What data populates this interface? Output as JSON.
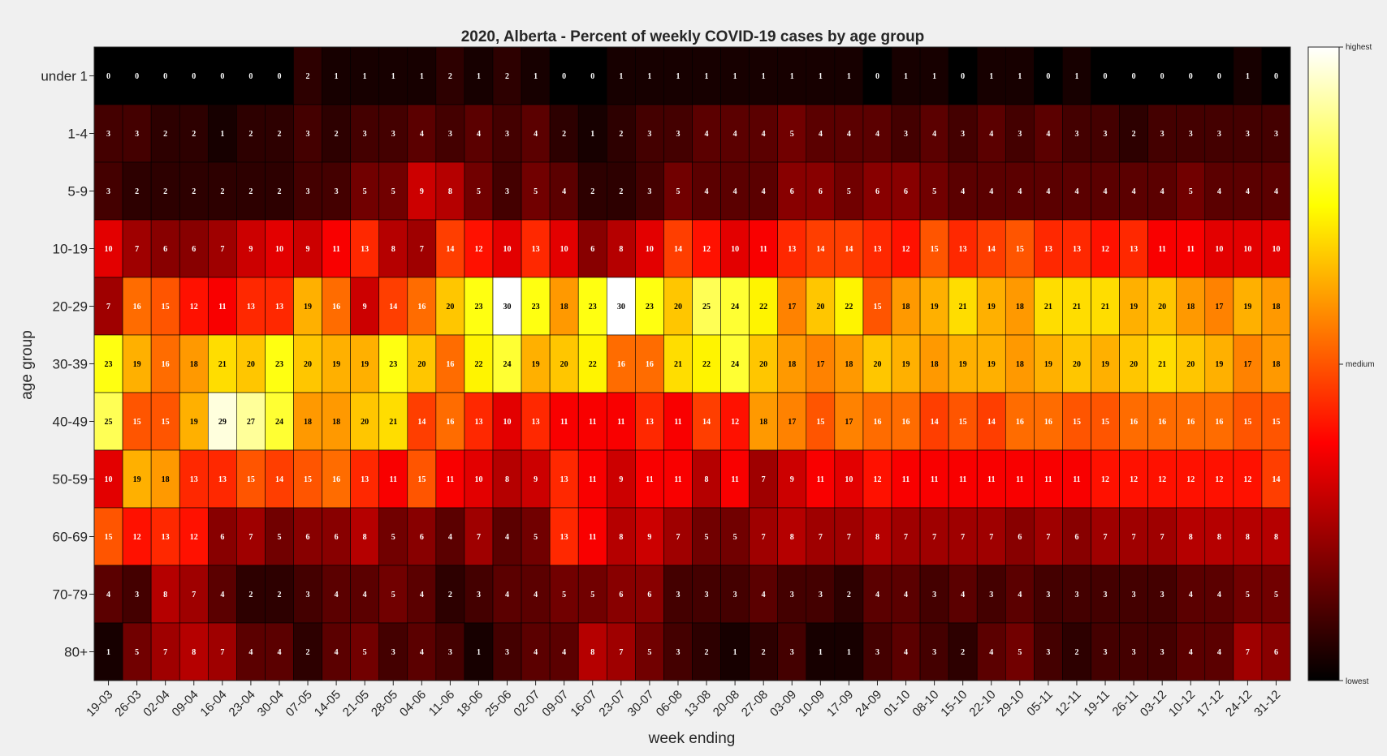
{
  "chart_data": {
    "type": "heatmap",
    "title": "2020, Alberta - Percent of weekly COVID-19 cases by age group",
    "xlabel": "week ending",
    "ylabel": "age group",
    "rows": [
      "under 1",
      "1-4",
      "5-9",
      "10-19",
      "20-29",
      "30-39",
      "40-49",
      "50-59",
      "60-69",
      "70-79",
      "80+"
    ],
    "columns": [
      "19-03",
      "26-03",
      "02-04",
      "09-04",
      "16-04",
      "23-04",
      "30-04",
      "07-05",
      "14-05",
      "21-05",
      "28-05",
      "04-06",
      "11-06",
      "18-06",
      "25-06",
      "02-07",
      "09-07",
      "16-07",
      "23-07",
      "30-07",
      "06-08",
      "13-08",
      "20-08",
      "27-08",
      "03-09",
      "10-09",
      "17-09",
      "24-09",
      "01-10",
      "08-10",
      "15-10",
      "22-10",
      "29-10",
      "05-11",
      "12-11",
      "19-11",
      "26-11",
      "03-12",
      "10-12",
      "17-12",
      "24-12",
      "31-12"
    ],
    "values": [
      [
        0,
        0,
        0,
        0,
        0,
        0,
        0,
        2,
        1,
        1,
        1,
        1,
        2,
        1,
        2,
        1,
        0,
        0,
        1,
        1,
        1,
        1,
        1,
        1,
        1,
        1,
        1,
        0,
        1,
        1,
        0,
        1,
        1,
        0,
        1,
        0,
        0,
        0,
        0,
        0,
        1,
        0
      ],
      [
        3,
        3,
        2,
        2,
        1,
        2,
        2,
        3,
        2,
        3,
        3,
        4,
        3,
        4,
        3,
        4,
        2,
        1,
        2,
        3,
        3,
        4,
        4,
        4,
        5,
        4,
        4,
        4,
        3,
        4,
        3,
        4,
        3,
        4,
        3,
        3,
        2,
        3,
        3,
        3,
        3,
        3
      ],
      [
        3,
        2,
        2,
        2,
        2,
        2,
        2,
        3,
        3,
        5,
        5,
        9,
        8,
        5,
        3,
        5,
        4,
        2,
        2,
        3,
        5,
        4,
        4,
        4,
        6,
        6,
        5,
        6,
        6,
        5,
        4,
        4,
        4,
        4,
        4,
        4,
        4,
        4,
        5,
        4,
        4,
        4
      ],
      [
        10,
        7,
        6,
        6,
        7,
        9,
        10,
        9,
        11,
        13,
        8,
        7,
        14,
        12,
        10,
        13,
        10,
        6,
        8,
        10,
        14,
        12,
        10,
        11,
        13,
        14,
        14,
        13,
        12,
        15,
        13,
        14,
        15,
        13,
        13,
        12,
        13,
        11,
        11,
        10,
        10,
        10
      ],
      [
        7,
        16,
        15,
        12,
        11,
        13,
        13,
        19,
        16,
        9,
        14,
        16,
        20,
        23,
        30,
        23,
        18,
        23,
        30,
        23,
        20,
        25,
        24,
        22,
        17,
        20,
        22,
        15,
        18,
        19,
        21,
        19,
        18,
        21,
        21,
        21,
        19,
        20,
        18,
        17,
        19,
        18
      ],
      [
        23,
        19,
        16,
        18,
        21,
        20,
        23,
        20,
        19,
        19,
        23,
        20,
        16,
        22,
        24,
        19,
        20,
        22,
        16,
        16,
        21,
        22,
        24,
        20,
        18,
        17,
        18,
        20,
        19,
        18,
        19,
        19,
        18,
        19,
        20,
        19,
        20,
        21,
        20,
        19,
        17,
        18
      ],
      [
        25,
        15,
        15,
        19,
        29,
        27,
        24,
        18,
        18,
        20,
        21,
        14,
        16,
        13,
        10,
        13,
        11,
        11,
        11,
        13,
        11,
        14,
        12,
        18,
        17,
        15,
        17,
        16,
        16,
        14,
        15,
        14,
        16,
        16,
        15,
        15,
        16,
        16,
        16,
        16,
        15,
        15
      ],
      [
        10,
        19,
        18,
        13,
        13,
        15,
        14,
        15,
        16,
        13,
        11,
        15,
        11,
        10,
        8,
        9,
        13,
        11,
        9,
        11,
        11,
        8,
        11,
        7,
        9,
        11,
        10,
        12,
        11,
        11,
        11,
        11,
        11,
        11,
        11,
        12,
        12,
        12,
        12,
        12,
        12,
        14
      ],
      [
        15,
        12,
        13,
        12,
        6,
        7,
        5,
        6,
        6,
        8,
        5,
        6,
        4,
        7,
        4,
        5,
        13,
        11,
        8,
        9,
        7,
        5,
        5,
        7,
        8,
        7,
        7,
        8,
        7,
        7,
        7,
        7,
        6,
        7,
        6,
        7,
        7,
        7,
        8,
        8,
        8,
        8
      ],
      [
        4,
        3,
        8,
        7,
        4,
        2,
        2,
        3,
        4,
        4,
        5,
        4,
        2,
        3,
        4,
        4,
        5,
        5,
        6,
        6,
        3,
        3,
        3,
        4,
        3,
        3,
        2,
        4,
        4,
        3,
        4,
        3,
        4,
        3,
        3,
        3,
        3,
        3,
        4,
        4,
        5,
        5
      ],
      [
        1,
        5,
        7,
        8,
        7,
        4,
        4,
        2,
        4,
        5,
        3,
        4,
        3,
        1,
        3,
        4,
        4,
        8,
        7,
        5,
        3,
        2,
        1,
        2,
        3,
        1,
        1,
        3,
        4,
        3,
        2,
        4,
        5,
        3,
        2,
        3,
        3,
        3,
        4,
        4,
        7,
        6
      ]
    ],
    "colormap": "hot",
    "colorbar": {
      "labels": [
        "highest",
        "medium",
        "lowest"
      ]
    },
    "colors": {
      "background": "#f0f0f0",
      "grid_line": "#000000",
      "text": "#262626"
    }
  }
}
